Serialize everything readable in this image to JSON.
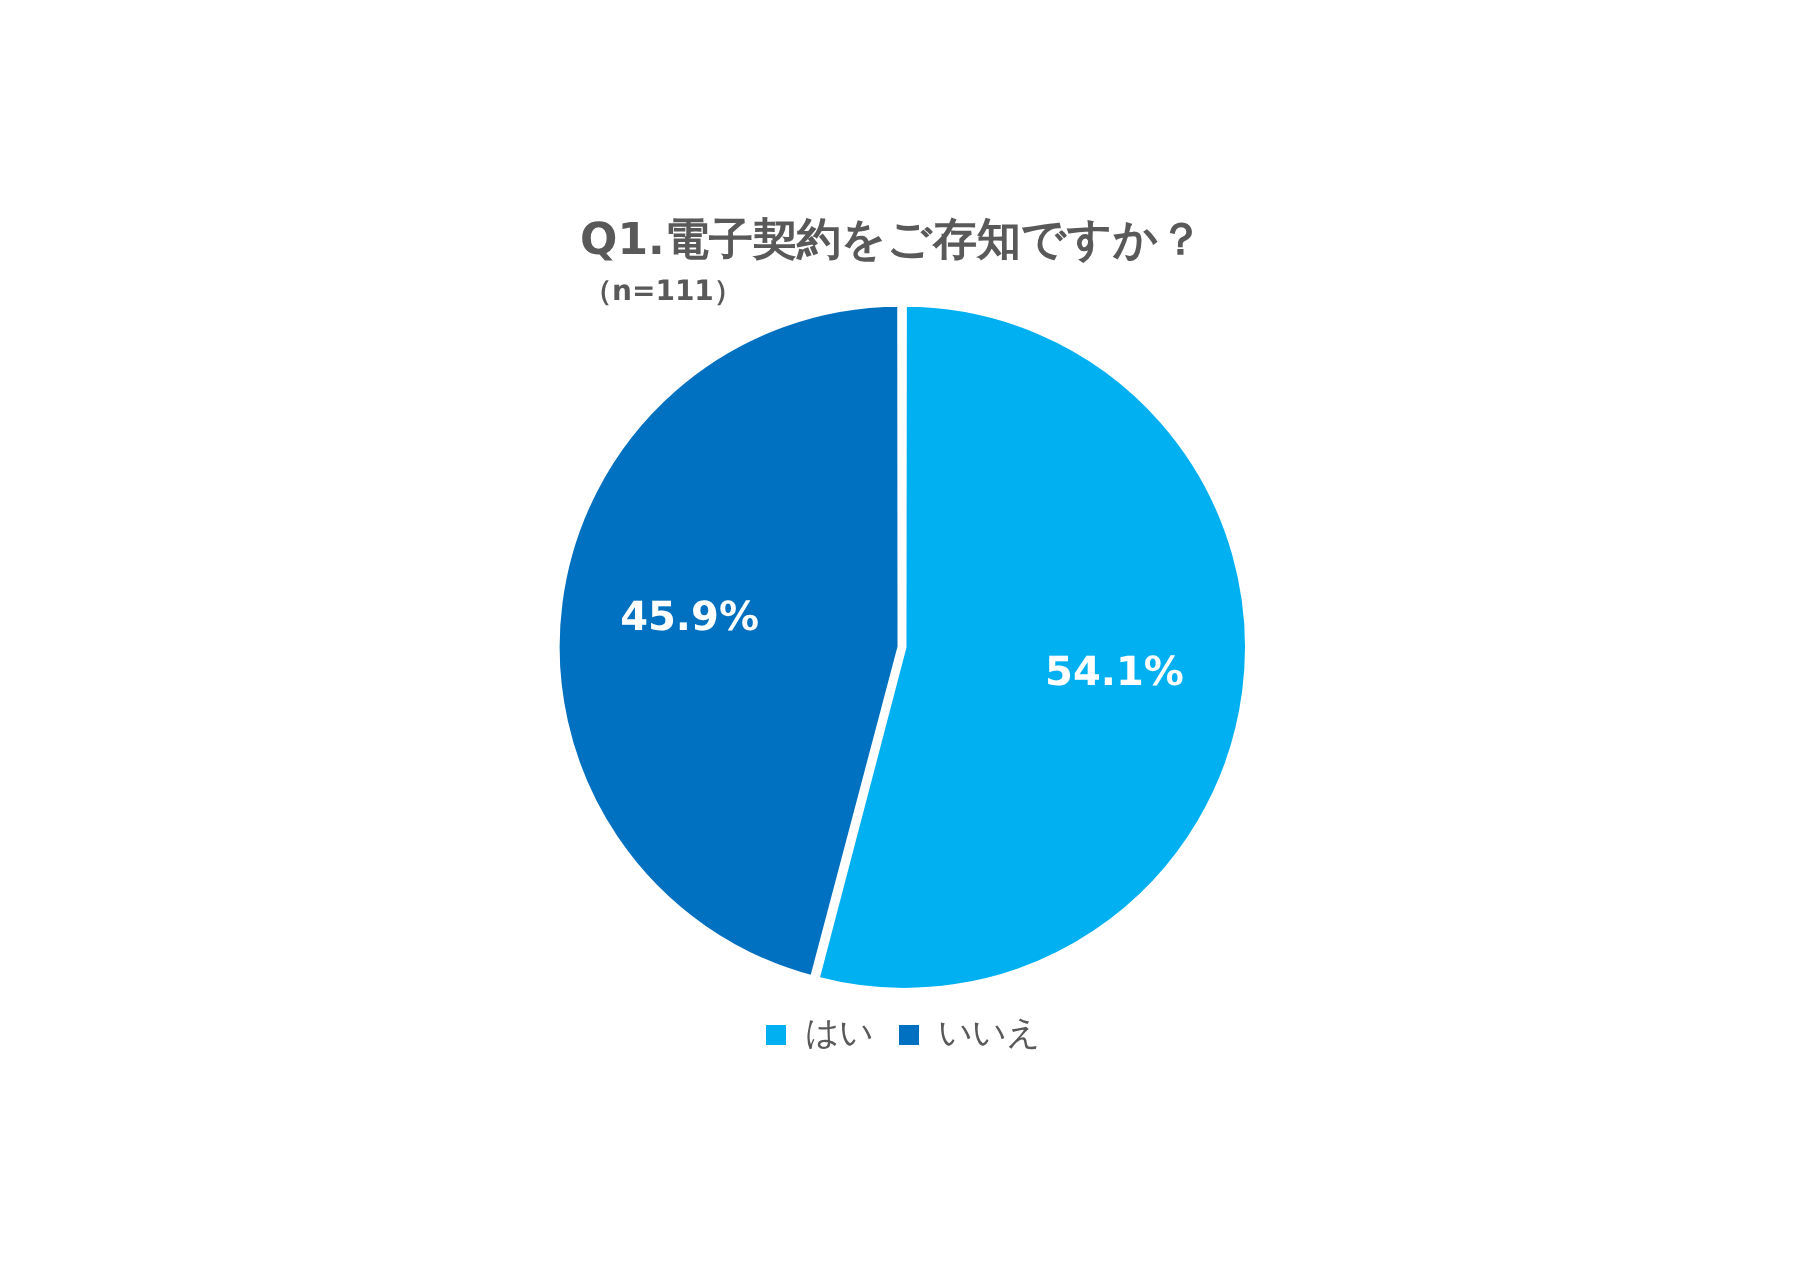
{
  "chart_data": {
    "type": "pie",
    "title": "Q1.電子契約をご存知ですか？",
    "subtitle": "（n=111）",
    "categories": [
      "はい",
      "いいえ"
    ],
    "values": [
      54.1,
      45.9
    ],
    "colors": [
      "#00b0f0",
      "#0070c0"
    ],
    "value_labels": [
      "54.1%",
      "45.9%"
    ],
    "legend": "bottom"
  }
}
